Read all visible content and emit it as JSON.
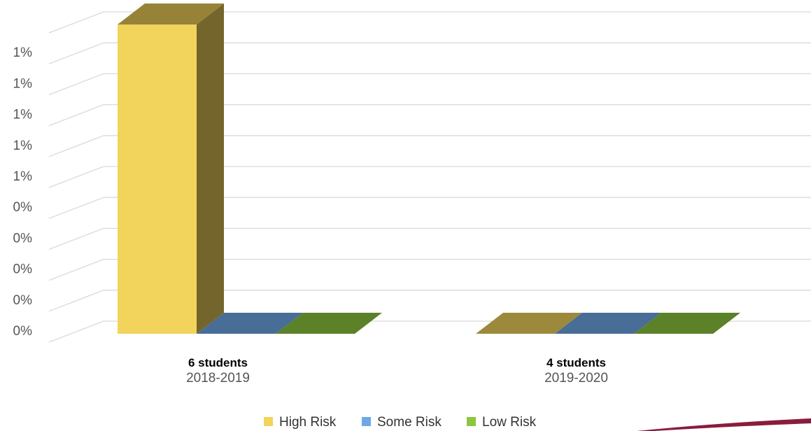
{
  "chart_data": {
    "type": "bar",
    "categories": [
      "2018-2019",
      "2019-2020"
    ],
    "category_counts": [
      "6 students",
      "4 students"
    ],
    "y_tick_labels": [
      "0%",
      "0%",
      "0%",
      "0%",
      "0%",
      "1%",
      "1%",
      "1%",
      "1%",
      "1%"
    ],
    "ylim": [
      0,
      1
    ],
    "grid": true,
    "legend_position": "bottom",
    "series": [
      {
        "name": "High Risk",
        "values": [
          1,
          0
        ],
        "color": "#f2d35b"
      },
      {
        "name": "Some Risk",
        "values": [
          0,
          0
        ],
        "color": "#6fa8e6"
      },
      {
        "name": "Low Risk",
        "values": [
          0,
          0
        ],
        "color": "#8cc63f"
      }
    ]
  }
}
